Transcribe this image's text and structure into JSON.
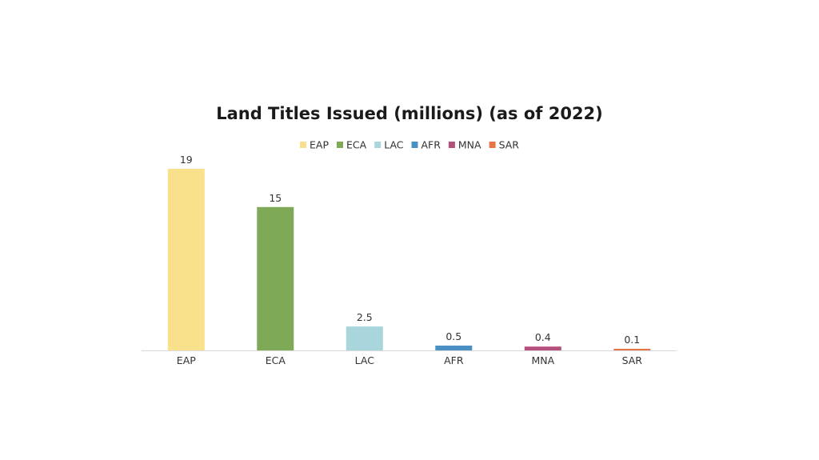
{
  "chart_data": {
    "type": "bar",
    "title": "Land Titles Issued (millions) (as of 2022)",
    "xlabel": "",
    "ylabel": "",
    "ylim": [
      0,
      19
    ],
    "grid": false,
    "legend_position": "top",
    "categories": [
      "EAP",
      "ECA",
      "LAC",
      "AFR",
      "MNA",
      "SAR"
    ],
    "values": [
      19,
      15,
      2.5,
      0.5,
      0.4,
      0.1
    ],
    "data_labels": [
      "19",
      "15",
      "2.5",
      "0.5",
      "0.4",
      "0.1"
    ],
    "colors": [
      "#f9e08a",
      "#7ea956",
      "#a9d5dd",
      "#4a90c4",
      "#b5507e",
      "#e87545"
    ],
    "axis_color": "#d9d9d9"
  }
}
